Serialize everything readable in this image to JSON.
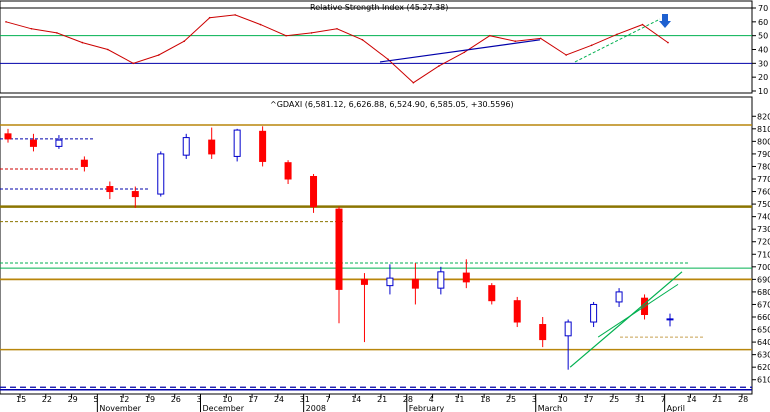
{
  "rsi_panel": {
    "title": "Relative Strength Index (45.27.38)",
    "y_ticks": [
      "70",
      "60",
      "50",
      "40",
      "30",
      "20",
      "10"
    ]
  },
  "price_panel": {
    "title": "^GDAXI (6,581.12, 6,626.88, 6,524.90, 6,585.05, +30.5596)",
    "y_ticks": [
      "8200",
      "8100",
      "8000",
      "7900",
      "7800",
      "7700",
      "7600",
      "7500",
      "7400",
      "7300",
      "7200",
      "7100",
      "7000",
      "6900",
      "6800",
      "6700",
      "6600",
      "6500",
      "6400",
      "6300",
      "6200",
      "6100"
    ]
  },
  "x_axis": {
    "day_ticks": [
      "15",
      "22",
      "29",
      "5",
      "12",
      "19",
      "26",
      "3",
      "10",
      "17",
      "24",
      "31",
      "7",
      "14",
      "21",
      "28",
      "4",
      "11",
      "18",
      "25",
      "3",
      "10",
      "17",
      "25",
      "31",
      "7",
      "14",
      "21",
      "28"
    ],
    "month_labels": [
      "November",
      "December",
      "2008",
      "February",
      "March",
      "April"
    ]
  },
  "colors": {
    "up_candle": "#0000cc",
    "down_candle": "#ff0000",
    "rsi_line": "#cc0000",
    "support": "#b8860b",
    "resistance_green": "#00b050",
    "blue_line": "#0000aa",
    "arrow": "#1e60d0"
  },
  "chart_data": [
    {
      "type": "line",
      "title": "Relative Strength Index (45.27.38)",
      "ylim": [
        10,
        70
      ],
      "guides": [
        30,
        50,
        70
      ],
      "x": [
        "15",
        "22",
        "29",
        "5",
        "12",
        "19",
        "26",
        "3",
        "10",
        "17",
        "24",
        "31",
        "7",
        "14",
        "21",
        "28",
        "4",
        "11",
        "18",
        "25",
        "3",
        "10",
        "17",
        "25",
        "31",
        "7",
        "14"
      ],
      "series": [
        {
          "values": [
            60,
            55,
            52,
            45,
            40,
            30,
            36,
            46,
            63,
            65,
            58,
            50,
            52,
            55,
            47,
            33,
            16,
            28,
            38,
            50,
            46,
            48,
            36,
            43,
            51,
            58,
            45
          ]
        }
      ],
      "annotation": "down-arrow"
    },
    {
      "type": "candlestick",
      "title": "^GDAXI (6,581.12, 6,626.88, 6,524.90, 6,585.05, +30.5596)",
      "ylim": [
        6050,
        8250
      ],
      "x": [
        "15",
        "22",
        "29",
        "5",
        "12",
        "19",
        "26",
        "3",
        "10",
        "17",
        "24",
        "31",
        "7",
        "14",
        "21",
        "28",
        "4",
        "11",
        "18",
        "25",
        "3",
        "10",
        "17",
        "25",
        "31",
        "7",
        "14"
      ],
      "open": [
        8060,
        8010,
        7960,
        7850,
        7640,
        7600,
        7580,
        7890,
        8010,
        7880,
        8080,
        7830,
        7720,
        7460,
        6900,
        6850,
        6900,
        6830,
        6950,
        6850,
        6730,
        6540,
        6450,
        6560,
        6720,
        6750,
        6580
      ],
      "close": [
        8020,
        7960,
        8010,
        7800,
        7600,
        7560,
        7900,
        8030,
        7900,
        8090,
        7840,
        7700,
        7480,
        6820,
        6860,
        6910,
        6830,
        6960,
        6880,
        6730,
        6560,
        6420,
        6560,
        6700,
        6800,
        6620,
        6585
      ],
      "high": [
        8100,
        8060,
        8050,
        7880,
        7680,
        7640,
        7920,
        8060,
        8110,
        8100,
        8120,
        7850,
        7740,
        7480,
        6950,
        7020,
        7030,
        7000,
        7060,
        6870,
        6760,
        6600,
        6580,
        6720,
        6830,
        6780,
        6627
      ],
      "low": [
        7990,
        7920,
        7940,
        7760,
        7540,
        7470,
        7560,
        7860,
        7860,
        7840,
        7800,
        7660,
        7430,
        6550,
        6400,
        6780,
        6700,
        6780,
        6830,
        6700,
        6520,
        6360,
        6180,
        6520,
        6680,
        6580,
        6525
      ],
      "horizontal_levels": [
        8130,
        7480,
        6990,
        6900,
        6340,
        6020
      ],
      "dashed_levels": [
        8020,
        7780,
        7620,
        7360,
        7030,
        6440
      ]
    }
  ]
}
